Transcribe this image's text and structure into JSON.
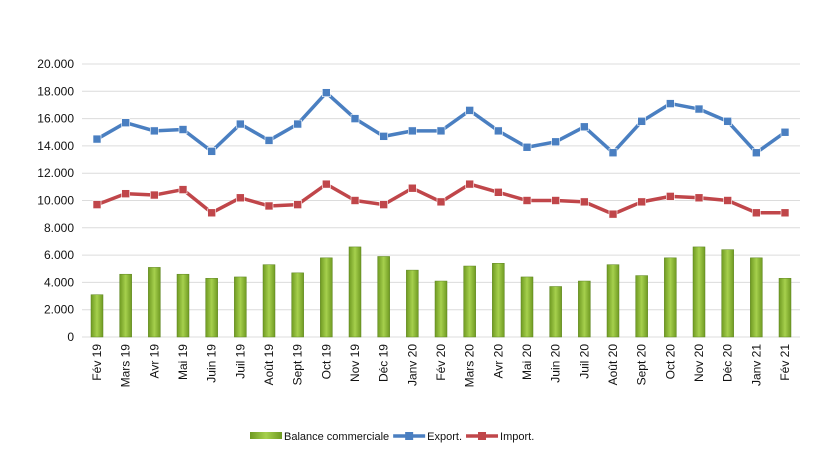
{
  "chart_data": {
    "type": "bar+line",
    "categories": [
      "Fév 19",
      "Mars 19",
      "Avr 19",
      "Mai 19",
      "Juin 19",
      "Juil 19",
      "Août 19",
      "Sept 19",
      "Oct 19",
      "Nov 19",
      "Déc 19",
      "Janv 20",
      "Fév 20",
      "Mars 20",
      "Avr 20",
      "Mai 20",
      "Juin 20",
      "Juil 20",
      "Août 20",
      "Sept 20",
      "Oct 20",
      "Nov 20",
      "Déc 20",
      "Janv 21",
      "Fév 21"
    ],
    "ylim": [
      0,
      20000
    ],
    "yticks": [
      0,
      2000,
      4000,
      6000,
      8000,
      10000,
      12000,
      14000,
      16000,
      18000,
      20000
    ],
    "ytick_labels": [
      "0",
      "2.000",
      "4.000",
      "6.000",
      "8.000",
      "10.000",
      "12.000",
      "14.000",
      "16.000",
      "18.000",
      "20.000"
    ],
    "grid": true,
    "legend_position": "bottom",
    "series": [
      {
        "name": "Balance commerciale",
        "kind": "bar",
        "color": "#8cb83a",
        "values": [
          3100,
          4600,
          5100,
          4600,
          4300,
          4400,
          5300,
          4700,
          5800,
          6600,
          5900,
          4900,
          4100,
          5200,
          5400,
          4400,
          3700,
          4100,
          5300,
          4500,
          5800,
          6600,
          6400,
          5800,
          4300
        ]
      },
      {
        "name": "Export.",
        "kind": "line",
        "color": "#4a7fc1",
        "values": [
          14500,
          15700,
          15100,
          15200,
          13600,
          15600,
          14400,
          15600,
          17900,
          16000,
          14700,
          15100,
          15100,
          16600,
          15100,
          13900,
          14300,
          15400,
          13500,
          15800,
          17100,
          16700,
          15800,
          13500,
          15000
        ]
      },
      {
        "name": "Import.",
        "kind": "line",
        "color": "#c0464a",
        "values": [
          9700,
          10500,
          10400,
          10800,
          9100,
          10200,
          9600,
          9700,
          11200,
          10000,
          9700,
          10900,
          9900,
          11200,
          10600,
          10000,
          10000,
          9900,
          9000,
          9900,
          10300,
          10200,
          10000,
          9100,
          9100
        ]
      }
    ]
  }
}
